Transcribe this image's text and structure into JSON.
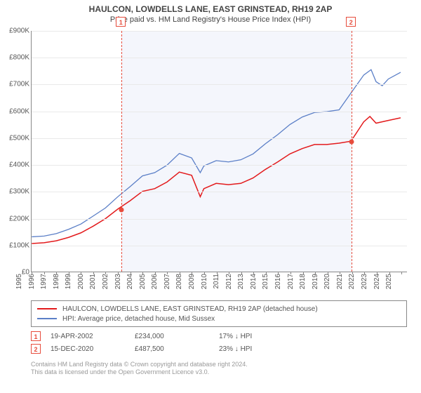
{
  "title": "HAULCON, LOWDELLS LANE, EAST GRINSTEAD, RH19 2AP",
  "subtitle": "Price paid vs. HM Land Registry's House Price Index (HPI)",
  "chart": {
    "type": "line",
    "background_color": "#ffffff",
    "shade_color": "#f4f6fc",
    "grid_color": "#e9e9e9",
    "axis_color": "#888888",
    "x": {
      "min": 1995,
      "max": 2025.5,
      "ticks": [
        1995,
        1996,
        1997,
        1998,
        1999,
        2000,
        2001,
        2002,
        2003,
        2004,
        2005,
        2006,
        2007,
        2008,
        2009,
        2010,
        2011,
        2012,
        2013,
        2014,
        2015,
        2016,
        2017,
        2018,
        2019,
        2020,
        2021,
        2022,
        2023,
        2024,
        2025
      ]
    },
    "y": {
      "min": 0,
      "max": 900000,
      "ticks": [
        0,
        100000,
        200000,
        300000,
        400000,
        500000,
        600000,
        700000,
        800000,
        900000
      ],
      "tick_labels": [
        "£0",
        "£100K",
        "£200K",
        "£300K",
        "£400K",
        "£500K",
        "£600K",
        "£700K",
        "£800K",
        "£900K"
      ]
    },
    "series": [
      {
        "id": "property",
        "label": "HAULCON, LOWDELLS LANE, EAST GRINSTEAD, RH19 2AP (detached house)",
        "color": "#e31a1c",
        "width": 1.5,
        "points": [
          [
            1995,
            105000
          ],
          [
            1996,
            108000
          ],
          [
            1997,
            115000
          ],
          [
            1998,
            128000
          ],
          [
            1999,
            145000
          ],
          [
            2000,
            170000
          ],
          [
            2001,
            198000
          ],
          [
            2002,
            234000
          ],
          [
            2003,
            265000
          ],
          [
            2004,
            300000
          ],
          [
            2005,
            310000
          ],
          [
            2006,
            335000
          ],
          [
            2007,
            372000
          ],
          [
            2008,
            360000
          ],
          [
            2008.7,
            280000
          ],
          [
            2009,
            310000
          ],
          [
            2010,
            330000
          ],
          [
            2011,
            325000
          ],
          [
            2012,
            330000
          ],
          [
            2013,
            350000
          ],
          [
            2014,
            382000
          ],
          [
            2015,
            410000
          ],
          [
            2016,
            440000
          ],
          [
            2017,
            460000
          ],
          [
            2018,
            475000
          ],
          [
            2019,
            475000
          ],
          [
            2020,
            480000
          ],
          [
            2020.96,
            487500
          ],
          [
            2021.5,
            525000
          ],
          [
            2022,
            560000
          ],
          [
            2022.5,
            580000
          ],
          [
            2023,
            555000
          ],
          [
            2024,
            565000
          ],
          [
            2025,
            575000
          ]
        ]
      },
      {
        "id": "hpi",
        "label": "HPI: Average price, detached house, Mid Sussex",
        "color": "#5b7fc7",
        "width": 1.3,
        "points": [
          [
            1995,
            130000
          ],
          [
            1996,
            133000
          ],
          [
            1997,
            142000
          ],
          [
            1998,
            158000
          ],
          [
            1999,
            178000
          ],
          [
            2000,
            208000
          ],
          [
            2001,
            238000
          ],
          [
            2002,
            280000
          ],
          [
            2003,
            318000
          ],
          [
            2004,
            358000
          ],
          [
            2005,
            370000
          ],
          [
            2006,
            398000
          ],
          [
            2007,
            442000
          ],
          [
            2008,
            425000
          ],
          [
            2008.7,
            370000
          ],
          [
            2009,
            395000
          ],
          [
            2010,
            415000
          ],
          [
            2011,
            410000
          ],
          [
            2012,
            418000
          ],
          [
            2013,
            440000
          ],
          [
            2014,
            478000
          ],
          [
            2015,
            512000
          ],
          [
            2016,
            550000
          ],
          [
            2017,
            578000
          ],
          [
            2018,
            595000
          ],
          [
            2019,
            598000
          ],
          [
            2020,
            605000
          ],
          [
            2021,
            670000
          ],
          [
            2022,
            735000
          ],
          [
            2022.6,
            755000
          ],
          [
            2023,
            710000
          ],
          [
            2023.5,
            695000
          ],
          [
            2024,
            720000
          ],
          [
            2025,
            745000
          ]
        ]
      }
    ],
    "markers": [
      {
        "id": "1",
        "x": 2002.3,
        "y": 234000
      },
      {
        "id": "2",
        "x": 2020.96,
        "y": 487500
      }
    ],
    "shade_range": [
      2002.3,
      2020.96
    ]
  },
  "legend": {
    "items": [
      {
        "color": "#e31a1c",
        "label_ref": "chart.series.0.label"
      },
      {
        "color": "#5b7fc7",
        "label_ref": "chart.series.1.label"
      }
    ]
  },
  "sales": [
    {
      "marker": "1",
      "date": "19-APR-2002",
      "price": "£234,000",
      "diff": "17% ↓ HPI"
    },
    {
      "marker": "2",
      "date": "15-DEC-2020",
      "price": "£487,500",
      "diff": "23% ↓ HPI"
    }
  ],
  "footer": {
    "line1": "Contains HM Land Registry data © Crown copyright and database right 2024.",
    "line2": "This data is licensed under the Open Government Licence v3.0."
  }
}
